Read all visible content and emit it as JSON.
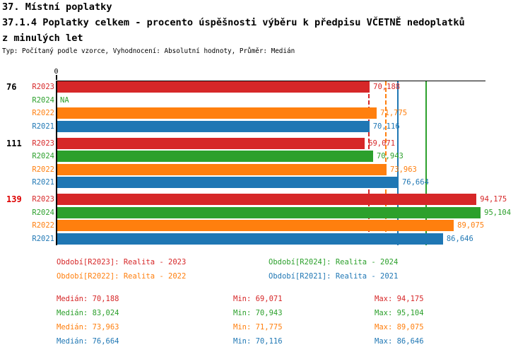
{
  "header": {
    "title_line1": "37. Místní poplatky",
    "title_line2": "37.1.4 Poplatky celkem - procento úspěšnosti výběru k předpisu VČETNĚ nedoplatků",
    "title_line3": "z minulých let",
    "meta_line": "Typ: Počítaný podle vzorce, Vyhodnocení: Absolutní hodnoty, Průměr: Medián"
  },
  "colors": {
    "R2023": "#d62728",
    "R2024": "#2ca02c",
    "R2022": "#ff7f0e",
    "R2021": "#1f77b4",
    "group_highlight": "#dd0000",
    "axis": "#000000"
  },
  "chart_data": {
    "type": "bar",
    "orientation": "horizontal",
    "axis_tick_label": "0",
    "xlim": [
      0,
      96.5
    ],
    "grid": false,
    "series_order": [
      "R2023",
      "R2024",
      "R2022",
      "R2021"
    ],
    "groups": [
      {
        "label": "76",
        "label_color": "#000000",
        "bars": [
          {
            "series": "R2023",
            "value": 70.188,
            "value_label": "70,188"
          },
          {
            "series": "R2024",
            "value": null,
            "value_label": "NA"
          },
          {
            "series": "R2022",
            "value": 71.775,
            "value_label": "71,775"
          },
          {
            "series": "R2021",
            "value": 70.116,
            "value_label": "70,116"
          }
        ]
      },
      {
        "label": "111",
        "label_color": "#000000",
        "bars": [
          {
            "series": "R2023",
            "value": 69.071,
            "value_label": "69,071"
          },
          {
            "series": "R2024",
            "value": 70.943,
            "value_label": "70,943"
          },
          {
            "series": "R2022",
            "value": 73.963,
            "value_label": "73,963"
          },
          {
            "series": "R2021",
            "value": 76.664,
            "value_label": "76,664"
          }
        ]
      },
      {
        "label": "139",
        "label_color": "#dd0000",
        "bars": [
          {
            "series": "R2023",
            "value": 94.175,
            "value_label": "94,175"
          },
          {
            "series": "R2024",
            "value": 95.104,
            "value_label": "95,104"
          },
          {
            "series": "R2022",
            "value": 89.075,
            "value_label": "89,075"
          },
          {
            "series": "R2021",
            "value": 86.646,
            "value_label": "86,646"
          }
        ]
      }
    ],
    "median_lines": [
      {
        "series": "R2023",
        "value": 70.188,
        "style": "dashed"
      },
      {
        "series": "R2022",
        "value": 73.963,
        "style": "dashed"
      },
      {
        "series": "R2021",
        "value": 76.664,
        "style": "solid"
      },
      {
        "series": "R2024",
        "value": 83.024,
        "style": "solid"
      }
    ]
  },
  "legend": {
    "items": [
      {
        "series": "R2023",
        "label": "Období[R2023]: Realita - 2023"
      },
      {
        "series": "R2024",
        "label": "Období[R2024]: Realita - 2024"
      },
      {
        "series": "R2022",
        "label": "Období[R2022]: Realita - 2022"
      },
      {
        "series": "R2021",
        "label": "Období[R2021]: Realita - 2021"
      }
    ]
  },
  "stats": {
    "rows": [
      {
        "series": "R2023",
        "median": "Medián: 70,188",
        "min": "Min: 69,071",
        "max": "Max: 94,175"
      },
      {
        "series": "R2024",
        "median": "Medián: 83,024",
        "min": "Min: 70,943",
        "max": "Max: 95,104"
      },
      {
        "series": "R2022",
        "median": "Medián: 73,963",
        "min": "Min: 71,775",
        "max": "Max: 89,075"
      },
      {
        "series": "R2021",
        "median": "Medián: 76,664",
        "min": "Min: 70,116",
        "max": "Max: 86,646"
      }
    ]
  }
}
